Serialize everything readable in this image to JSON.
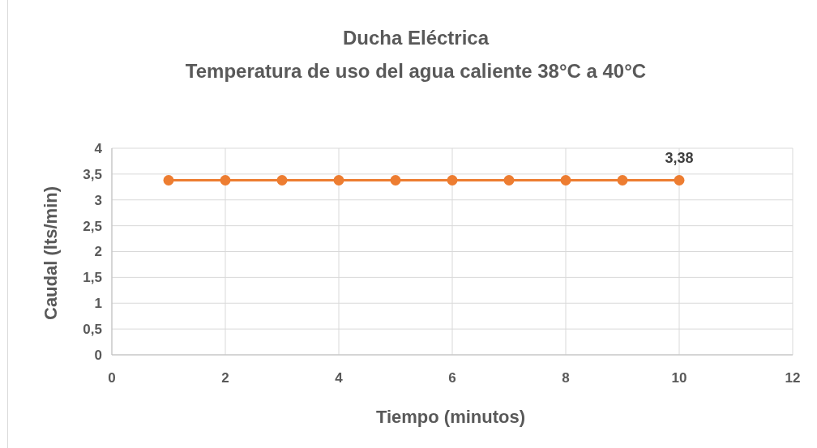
{
  "chart_data": {
    "type": "line",
    "title": "Ducha Eléctrica\nTemperatura de uso del agua caliente 38°C a 40°C",
    "xlabel": "Tiempo (minutos)",
    "ylabel": "Caudal (lts/min)",
    "x": [
      1,
      2,
      3,
      4,
      5,
      6,
      7,
      8,
      9,
      10
    ],
    "series": [
      {
        "color": "#ed7d31",
        "values": [
          3.38,
          3.38,
          3.38,
          3.38,
          3.38,
          3.38,
          3.38,
          3.38,
          3.38,
          3.38
        ],
        "value_labels": [
          null,
          null,
          null,
          null,
          null,
          null,
          null,
          null,
          null,
          "3,38"
        ]
      }
    ],
    "xlim": [
      0,
      12
    ],
    "xticks": [
      0,
      2,
      4,
      6,
      8,
      10,
      12
    ],
    "ylim": [
      0,
      4
    ],
    "yticks": [
      0,
      {
        "value": 0.5,
        "label": "0,5"
      },
      1,
      {
        "value": 1.5,
        "label": "1,5"
      },
      2,
      {
        "value": 2.5,
        "label": "2,5"
      },
      3,
      {
        "value": 3.5,
        "label": "3,5"
      },
      4
    ],
    "grid": true,
    "marker": "circle",
    "line_style": "solid"
  }
}
